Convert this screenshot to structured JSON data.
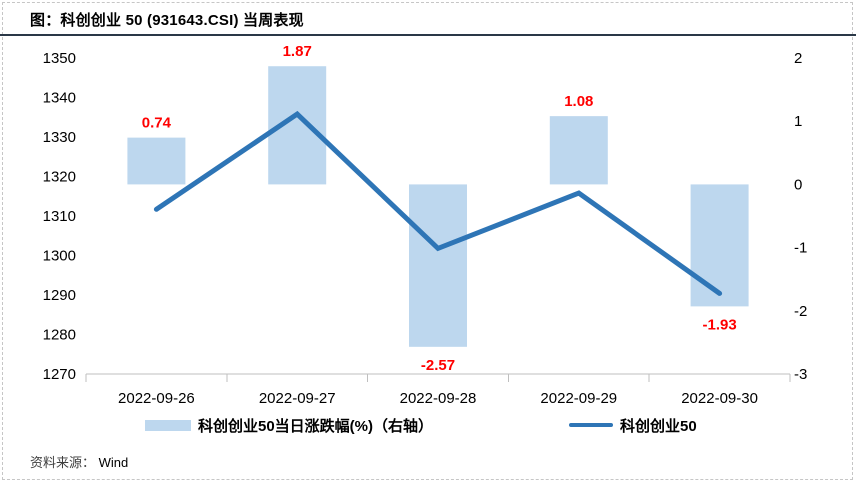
{
  "header": {
    "title": "图：科创创业 50 (931643.CSI) 当周表现"
  },
  "chart_data": {
    "type": "combo",
    "categories": [
      "2022-09-26",
      "2022-09-27",
      "2022-09-28",
      "2022-09-29",
      "2022-09-30"
    ],
    "series": [
      {
        "name": "科创创业50当日涨跌幅(%)（右轴）",
        "type": "bar",
        "axis": "right",
        "values": [
          0.74,
          1.87,
          -2.57,
          1.08,
          -1.93
        ],
        "data_labels": [
          "0.74",
          "1.87",
          "-2.57",
          "1.08",
          "-1.93"
        ],
        "color": "#BDD7EE",
        "data_label_color": "#FF0000"
      },
      {
        "name": "科创创业50",
        "type": "line",
        "axis": "left",
        "values": [
          1311.7,
          1335.8,
          1301.8,
          1315.8,
          1290.4
        ],
        "color": "#2E75B6"
      }
    ],
    "left_axis": {
      "min": 1270,
      "max": 1350,
      "step": 10
    },
    "right_axis": {
      "min": -3,
      "max": 2,
      "step": 1
    },
    "grid": false,
    "legend_position": "bottom"
  },
  "footer": {
    "source_label": "资料来源：",
    "source_value": "Wind"
  },
  "theme": {
    "divider_color": "#2A3847",
    "axis_line_color": "#BFBFBF",
    "border_color": "#C6C6C6"
  }
}
